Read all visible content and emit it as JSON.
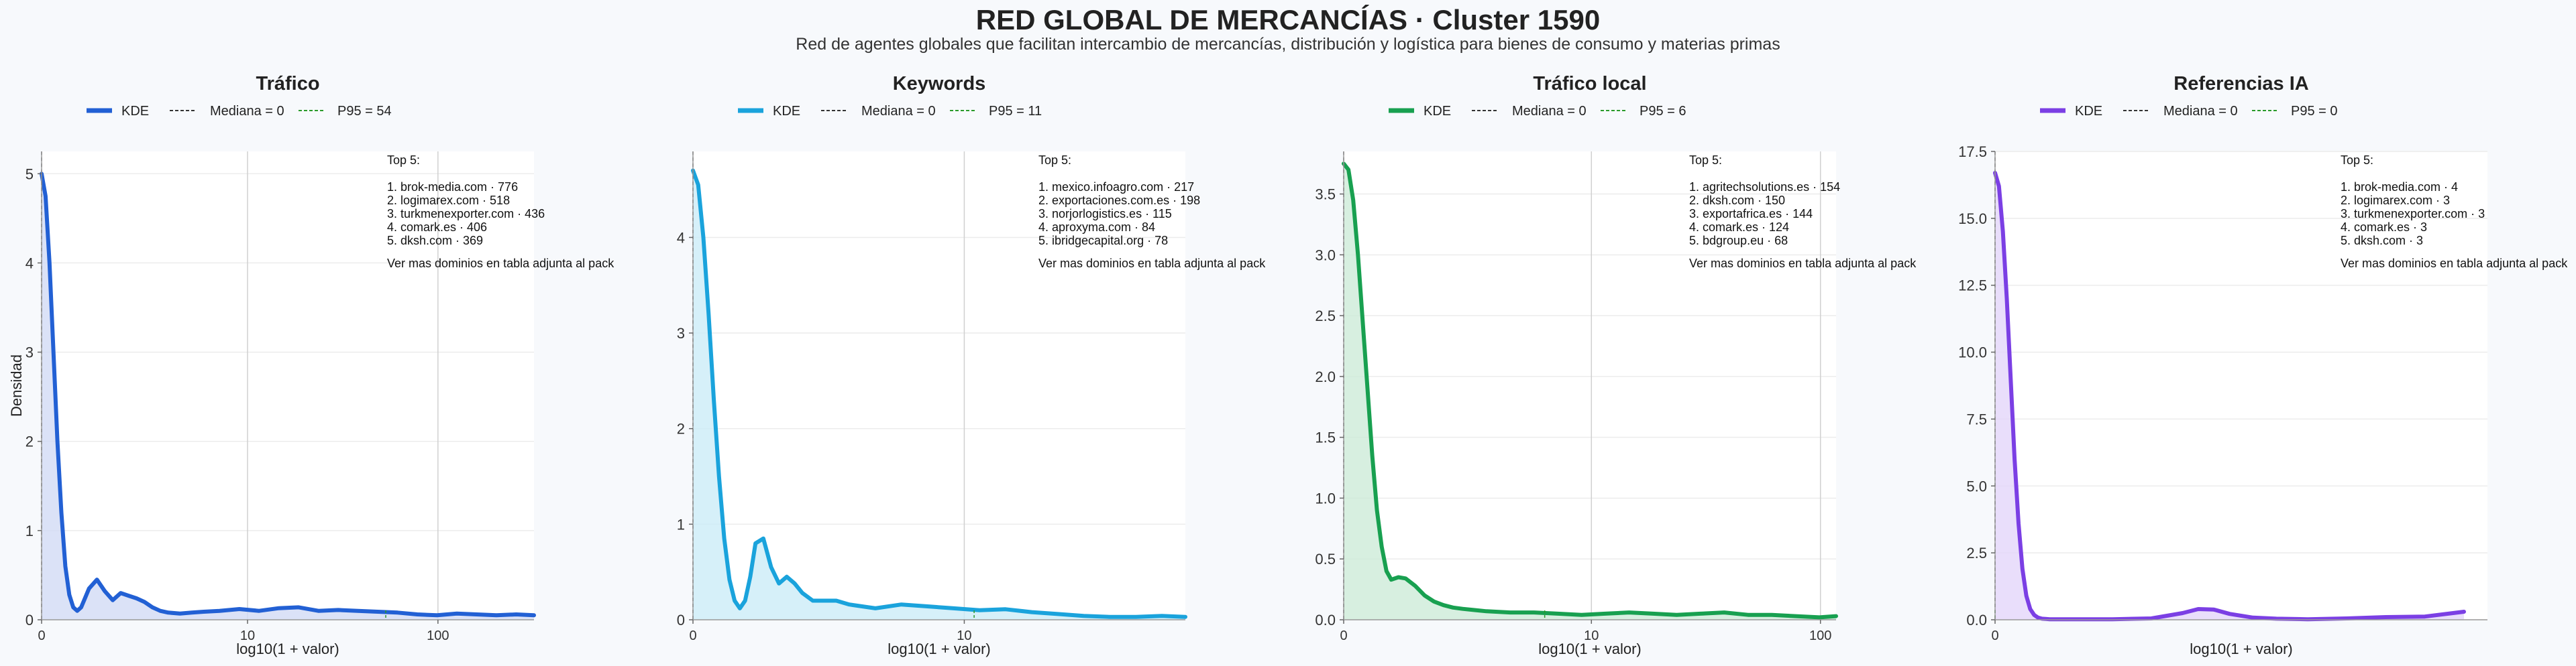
{
  "title": "RED GLOBAL DE MERCANCÍAS · Cluster 1590",
  "subtitle": "Red de agentes globales que facilitan intercambio de mercancías, distribución y logística para bienes de consumo y materias primas",
  "chart_data": [
    {
      "type": "area",
      "title": "Tráfico",
      "xlabel": "log10(1 + valor)",
      "ylabel": "Densidad",
      "x_scale": "log10(1+x)",
      "xlim": [
        0,
        2.49
      ],
      "ylim": [
        0,
        5.25
      ],
      "x_ticks": [
        "0",
        "10",
        "100"
      ],
      "y_ticks": [
        0,
        1,
        2,
        3,
        4,
        5
      ],
      "grid": true,
      "legend": {
        "placement": "top",
        "kde": "KDE",
        "median": "Mediana = 0",
        "p95": "P95 = 54"
      },
      "median": 0,
      "p95": 54,
      "color": "#2260d4",
      "fill": "#d2dbf5",
      "series": [
        {
          "name": "KDE",
          "x": [
            0,
            0.02,
            0.04,
            0.06,
            0.08,
            0.1,
            0.12,
            0.14,
            0.16,
            0.18,
            0.2,
            0.24,
            0.28,
            0.32,
            0.36,
            0.4,
            0.44,
            0.48,
            0.52,
            0.56,
            0.6,
            0.64,
            0.7,
            0.76,
            0.82,
            0.9,
            1.0,
            1.1,
            1.2,
            1.3,
            1.4,
            1.5,
            1.6,
            1.7,
            1.8,
            1.9,
            2.0,
            2.1,
            2.2,
            2.3,
            2.4,
            2.49
          ],
          "y": [
            5.0,
            4.75,
            4.0,
            3.0,
            2.0,
            1.2,
            0.6,
            0.28,
            0.14,
            0.1,
            0.14,
            0.35,
            0.45,
            0.32,
            0.22,
            0.3,
            0.27,
            0.24,
            0.2,
            0.14,
            0.1,
            0.08,
            0.07,
            0.08,
            0.09,
            0.1,
            0.12,
            0.1,
            0.13,
            0.14,
            0.1,
            0.11,
            0.1,
            0.09,
            0.08,
            0.06,
            0.05,
            0.07,
            0.06,
            0.05,
            0.06,
            0.05
          ]
        }
      ],
      "annotation": {
        "heading": "Top 5:",
        "items": [
          "1. brok-media.com · 776",
          "2. logimarex.com · 518",
          "3. turkmenexporter.com · 436",
          "4. comark.es · 406",
          "5. dksh.com · 369"
        ],
        "footer": "Ver mas dominios en tabla adjunta al pack"
      }
    },
    {
      "type": "area",
      "title": "Keywords",
      "xlabel": "log10(1 + valor)",
      "ylabel": "",
      "x_scale": "log10(1+x)",
      "xlim": [
        0,
        1.89
      ],
      "ylim": [
        0,
        4.9
      ],
      "x_ticks": [
        "0",
        "10"
      ],
      "y_ticks": [
        0,
        1,
        2,
        3,
        4
      ],
      "grid": true,
      "legend": {
        "placement": "top",
        "kde": "KDE",
        "median": "Mediana = 0",
        "p95": "P95 = 11"
      },
      "median": 0,
      "p95": 11,
      "color": "#1aa3dc",
      "fill": "#ccecf8",
      "series": [
        {
          "name": "KDE",
          "x": [
            0,
            0.02,
            0.04,
            0.06,
            0.08,
            0.1,
            0.12,
            0.14,
            0.16,
            0.18,
            0.2,
            0.22,
            0.24,
            0.27,
            0.3,
            0.33,
            0.36,
            0.39,
            0.42,
            0.46,
            0.5,
            0.55,
            0.6,
            0.7,
            0.8,
            0.9,
            1.0,
            1.1,
            1.2,
            1.3,
            1.4,
            1.5,
            1.6,
            1.7,
            1.8,
            1.89
          ],
          "y": [
            4.7,
            4.55,
            4.0,
            3.2,
            2.3,
            1.5,
            0.85,
            0.42,
            0.2,
            0.12,
            0.2,
            0.45,
            0.8,
            0.85,
            0.55,
            0.38,
            0.45,
            0.38,
            0.28,
            0.2,
            0.2,
            0.2,
            0.16,
            0.12,
            0.16,
            0.14,
            0.12,
            0.1,
            0.11,
            0.08,
            0.06,
            0.04,
            0.03,
            0.03,
            0.04,
            0.03
          ]
        }
      ],
      "annotation": {
        "heading": "Top 5:",
        "items": [
          "1. mexico.infoagro.com · 217",
          "2. exportaciones.com.es · 198",
          "3. norjorlogistics.es · 115",
          "4. aproxyma.com · 84",
          "5. ibridgecapital.org · 78"
        ],
        "footer": "Ver mas dominios en tabla adjunta al pack"
      }
    },
    {
      "type": "area",
      "title": "Tráfico local",
      "xlabel": "log10(1 + valor)",
      "ylabel": "",
      "x_scale": "log10(1+x)",
      "xlim": [
        0,
        2.07
      ],
      "ylim": [
        0,
        3.85
      ],
      "x_ticks": [
        "0",
        "10",
        "100"
      ],
      "y_ticks": [
        0.0,
        0.5,
        1.0,
        1.5,
        2.0,
        2.5,
        3.0,
        3.5
      ],
      "grid": true,
      "legend": {
        "placement": "top",
        "kde": "KDE",
        "median": "Mediana = 0",
        "p95": "P95 = 6"
      },
      "median": 0,
      "p95": 6,
      "color": "#18a050",
      "fill": "#cdebd8",
      "series": [
        {
          "name": "KDE",
          "x": [
            0,
            0.02,
            0.04,
            0.06,
            0.08,
            0.1,
            0.12,
            0.14,
            0.16,
            0.18,
            0.2,
            0.23,
            0.26,
            0.3,
            0.34,
            0.38,
            0.42,
            0.46,
            0.5,
            0.55,
            0.6,
            0.7,
            0.8,
            0.9,
            1.0,
            1.1,
            1.2,
            1.3,
            1.4,
            1.5,
            1.6,
            1.7,
            1.8,
            1.9,
            2.0,
            2.07
          ],
          "y": [
            3.75,
            3.7,
            3.45,
            3.0,
            2.45,
            1.9,
            1.35,
            0.9,
            0.6,
            0.4,
            0.33,
            0.35,
            0.34,
            0.28,
            0.2,
            0.15,
            0.12,
            0.1,
            0.09,
            0.08,
            0.07,
            0.06,
            0.06,
            0.05,
            0.04,
            0.05,
            0.06,
            0.05,
            0.04,
            0.05,
            0.06,
            0.04,
            0.04,
            0.03,
            0.02,
            0.03
          ]
        }
      ],
      "annotation": {
        "heading": "Top 5:",
        "items": [
          "1. agritechsolutions.es · 154",
          "2. dksh.com · 150",
          "3. exportafrica.es · 144",
          "4. comark.es · 124",
          "5. bdgroup.eu · 68"
        ],
        "footer": "Ver mas dominios en tabla adjunta al pack"
      }
    },
    {
      "type": "area",
      "title": "Referencias IA",
      "xlabel": "log10(1 + valor)",
      "ylabel": "",
      "x_scale": "log10(1+x)",
      "xlim": [
        0,
        0.63
      ],
      "ylim": [
        0,
        17.5
      ],
      "x_ticks": [
        "0"
      ],
      "y_ticks": [
        0.0,
        2.5,
        5.0,
        7.5,
        10.0,
        12.5,
        15.0,
        17.5
      ],
      "grid": true,
      "legend": {
        "placement": "top",
        "kde": "KDE",
        "median": "Mediana = 0",
        "p95": "P95 = 0"
      },
      "median": 0,
      "p95": 0,
      "color": "#7b3fe4",
      "fill": "#e3d6fa",
      "series": [
        {
          "name": "KDE",
          "x": [
            0,
            0.005,
            0.01,
            0.015,
            0.02,
            0.025,
            0.03,
            0.035,
            0.04,
            0.045,
            0.05,
            0.055,
            0.06,
            0.07,
            0.08,
            0.1,
            0.15,
            0.2,
            0.24,
            0.26,
            0.28,
            0.3,
            0.33,
            0.36,
            0.4,
            0.45,
            0.5,
            0.55,
            0.6
          ],
          "y": [
            16.7,
            16.2,
            14.5,
            12.0,
            9.0,
            6.0,
            3.6,
            1.9,
            0.9,
            0.4,
            0.18,
            0.08,
            0.04,
            0.02,
            0.02,
            0.02,
            0.02,
            0.05,
            0.25,
            0.4,
            0.38,
            0.22,
            0.08,
            0.04,
            0.02,
            0.05,
            0.1,
            0.12,
            0.3
          ]
        }
      ],
      "annotation": {
        "heading": "Top 5:",
        "items": [
          "1. brok-media.com · 4",
          "2. logimarex.com · 3",
          "3. turkmenexporter.com · 3",
          "4. comark.es · 3",
          "5. dksh.com · 3"
        ],
        "footer": "Ver mas dominios en tabla adjunta al pack"
      }
    }
  ]
}
